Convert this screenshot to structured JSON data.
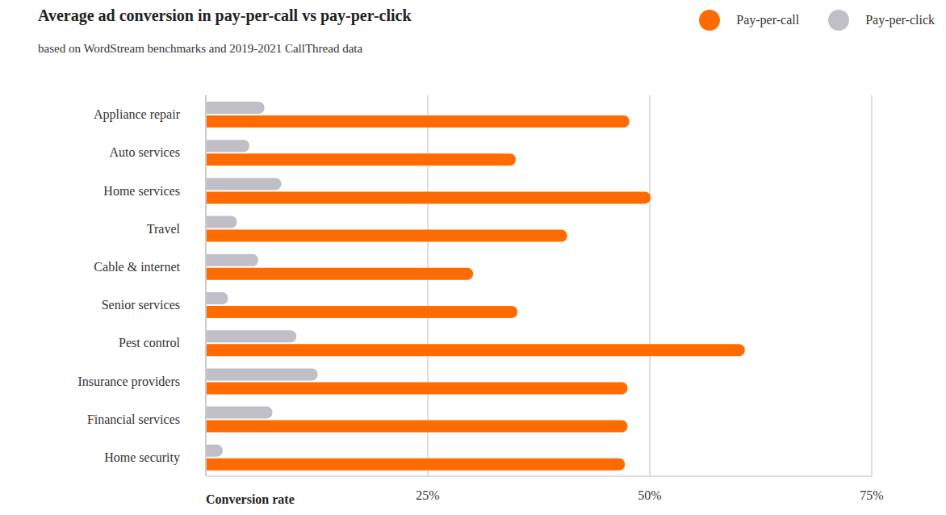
{
  "chart_data": {
    "type": "bar",
    "orientation": "horizontal",
    "title": "Average ad conversion in pay-per-call vs pay-per-click",
    "subtitle": "based on WordStream benchmarks and 2019-2021 CallThread data",
    "x_label": "Conversion rate",
    "categories": [
      "Appliance repair",
      "Auto services",
      "Home services",
      "Travel",
      "Cable & internet",
      "Senior services",
      "Pest control",
      "Insurance providers",
      "Financial services",
      "Home security"
    ],
    "series": [
      {
        "name": "Pay-per-call",
        "color": "#ff6b00",
        "values": [
          47.7,
          34.9,
          50.1,
          40.7,
          30.1,
          35.1,
          60.7,
          47.5,
          47.5,
          47.2
        ]
      },
      {
        "name": "Pay-per-click",
        "color": "#c0bfc7",
        "values": [
          6.6,
          4.9,
          8.5,
          3.5,
          5.9,
          2.5,
          10.2,
          12.6,
          7.5,
          1.9
        ]
      }
    ],
    "xlim": [
      0,
      75
    ],
    "xticks": [
      {
        "value": 25,
        "label": "25%"
      },
      {
        "value": 50,
        "label": "50%"
      },
      {
        "value": 75,
        "label": "75%"
      }
    ],
    "grid": true,
    "legend": "top-right"
  }
}
